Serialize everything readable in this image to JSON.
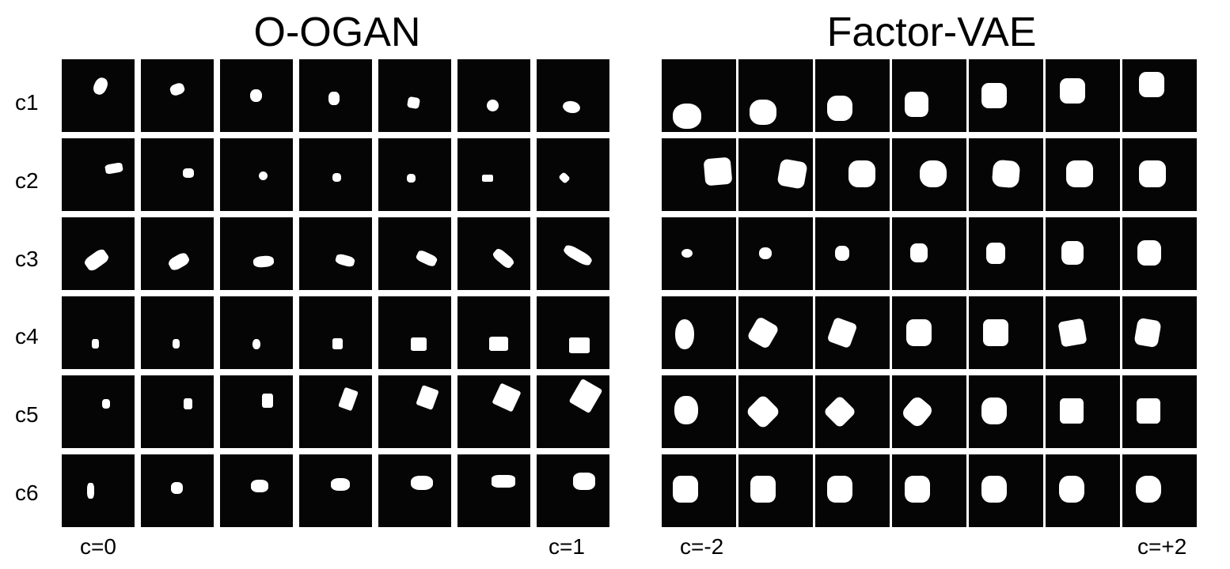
{
  "panels": [
    {
      "title": "O-OGAN",
      "row_labels": [
        "c1",
        "c2",
        "c3",
        "c4",
        "c5",
        "c6"
      ],
      "left_label": "c=0",
      "right_label": "c=1"
    },
    {
      "title": "Factor-VAE",
      "left_label": "c=-2",
      "right_label": "c=+2"
    }
  ],
  "grid": {
    "rows": 6,
    "columns": 7
  },
  "colors": {
    "cell_background": "#050505",
    "shape": "#ffffff"
  }
}
